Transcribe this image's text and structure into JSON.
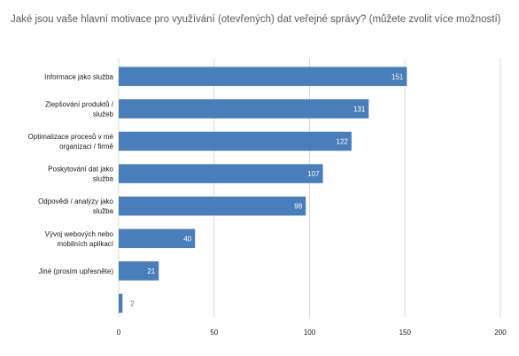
{
  "chart_data": {
    "type": "bar",
    "orientation": "horizontal",
    "title": "Jaké jsou vaše hlavní motivace pro využívání (otevřených) dat veřejné správy? (můžete zvolit více možností)",
    "categories": [
      [
        "Informace jako služba"
      ],
      [
        "Zlepšování produktů /",
        "služeb"
      ],
      [
        "Optimalizace procesů v mé",
        "organizaci / firmě"
      ],
      [
        "Poskytování dat jako",
        "služba"
      ],
      [
        "Odpovědi / analýzy jako",
        "služba"
      ],
      [
        "Vývoj webových nebo",
        "mobilních aplikací"
      ],
      [
        "Jiné (prosím upřesněte)"
      ],
      [
        ""
      ]
    ],
    "values": [
      151,
      131,
      122,
      107,
      98,
      40,
      21,
      2
    ],
    "xlim": [
      0,
      200
    ],
    "xticks": [
      0,
      50,
      100,
      150,
      200
    ],
    "grid": "vertical",
    "legend": "none",
    "bar_color": "#4a7ebb",
    "label_inside_color": "#ffffff",
    "label_outside_color": "#4a7ebb",
    "axis_text_color": "#1a1a1a",
    "title_color": "#595959"
  }
}
